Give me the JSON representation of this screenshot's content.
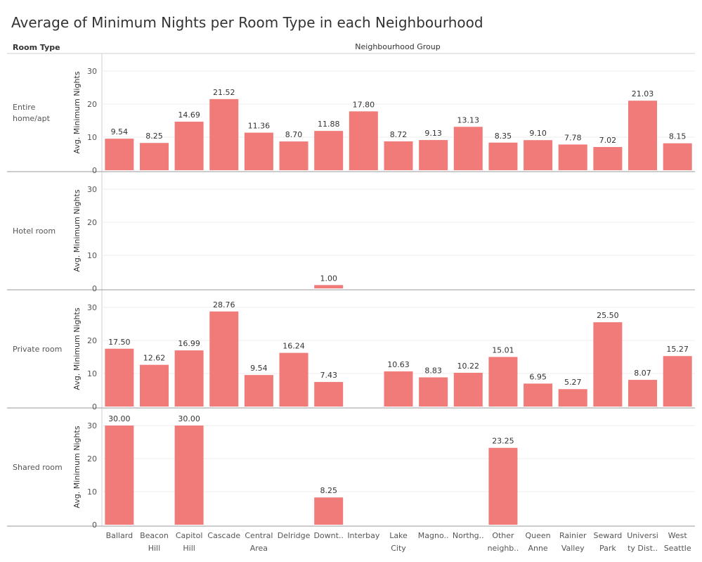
{
  "chart_data": {
    "type": "bar",
    "title": "Average of Minimum Nights per Room Type in each Neighbourhood",
    "row_header": "Room Type",
    "column_header": "Neighbourhood Group",
    "ylabel": "Avg. Minimum Nights",
    "ylim": [
      0,
      33
    ],
    "yticks": [
      0,
      10,
      20,
      30
    ],
    "grid": true,
    "color": "#f07b79",
    "categories": [
      "Ballard",
      "Beacon Hill",
      "Capitol Hill",
      "Cascade",
      "Central Area",
      "Delridge",
      "Downt..",
      "Interbay",
      "Lake City",
      "Magno..",
      "Northg..",
      "Other neighb..",
      "Queen Anne",
      "Rainier Valley",
      "Seward Park",
      "Universi ty Dist..",
      "West Seattle"
    ],
    "category_lines": [
      [
        "Ballard"
      ],
      [
        "Beacon",
        "Hill"
      ],
      [
        "Capitol",
        "Hill"
      ],
      [
        "Cascade"
      ],
      [
        "Central",
        "Area"
      ],
      [
        "Delridge"
      ],
      [
        "Downt.."
      ],
      [
        "Interbay"
      ],
      [
        "Lake",
        "City"
      ],
      [
        "Magno.."
      ],
      [
        "Northg.."
      ],
      [
        "Other",
        "neighb.."
      ],
      [
        "Queen",
        "Anne"
      ],
      [
        "Rainier",
        "Valley"
      ],
      [
        "Seward",
        "Park"
      ],
      [
        "Universi",
        "ty Dist.."
      ],
      [
        "West",
        "Seattle"
      ]
    ],
    "series": [
      {
        "name": "Entire home/apt",
        "label_lines": [
          "Entire",
          "home/apt"
        ],
        "values": [
          9.54,
          8.25,
          14.69,
          21.52,
          11.36,
          8.7,
          11.88,
          17.8,
          8.72,
          9.13,
          13.13,
          8.35,
          9.1,
          7.78,
          7.02,
          21.03,
          8.15
        ],
        "labels": [
          "9.54",
          "8.25",
          "14.69",
          "21.52",
          "11.36",
          "8.70",
          "11.88",
          "17.80",
          "8.72",
          "9.13",
          "13.13",
          "8.35",
          "9.10",
          "7.78",
          "7.02",
          "21.03",
          "8.15"
        ]
      },
      {
        "name": "Hotel room",
        "label_lines": [
          "Hotel room"
        ],
        "values": [
          null,
          null,
          null,
          null,
          null,
          null,
          1.0,
          null,
          null,
          null,
          null,
          null,
          null,
          null,
          null,
          null,
          null
        ],
        "labels": [
          null,
          null,
          null,
          null,
          null,
          null,
          "1.00",
          null,
          null,
          null,
          null,
          null,
          null,
          null,
          null,
          null,
          null
        ]
      },
      {
        "name": "Private room",
        "label_lines": [
          "Private room"
        ],
        "values": [
          17.5,
          12.62,
          16.99,
          28.76,
          9.54,
          16.24,
          7.43,
          null,
          10.63,
          8.83,
          10.22,
          15.01,
          6.95,
          5.27,
          25.5,
          8.07,
          15.27
        ],
        "labels": [
          "17.50",
          "12.62",
          "16.99",
          "28.76",
          "9.54",
          "16.24",
          "7.43",
          null,
          "10.63",
          "8.83",
          "10.22",
          "15.01",
          "6.95",
          "5.27",
          "25.50",
          "8.07",
          "15.27"
        ]
      },
      {
        "name": "Shared room",
        "label_lines": [
          "Shared room"
        ],
        "values": [
          30.0,
          null,
          30.0,
          null,
          null,
          null,
          8.25,
          null,
          null,
          null,
          null,
          23.25,
          null,
          null,
          null,
          null,
          null
        ],
        "labels": [
          "30.00",
          null,
          "30.00",
          null,
          null,
          null,
          "8.25",
          null,
          null,
          null,
          null,
          "23.25",
          null,
          null,
          null,
          null,
          null
        ]
      }
    ]
  }
}
